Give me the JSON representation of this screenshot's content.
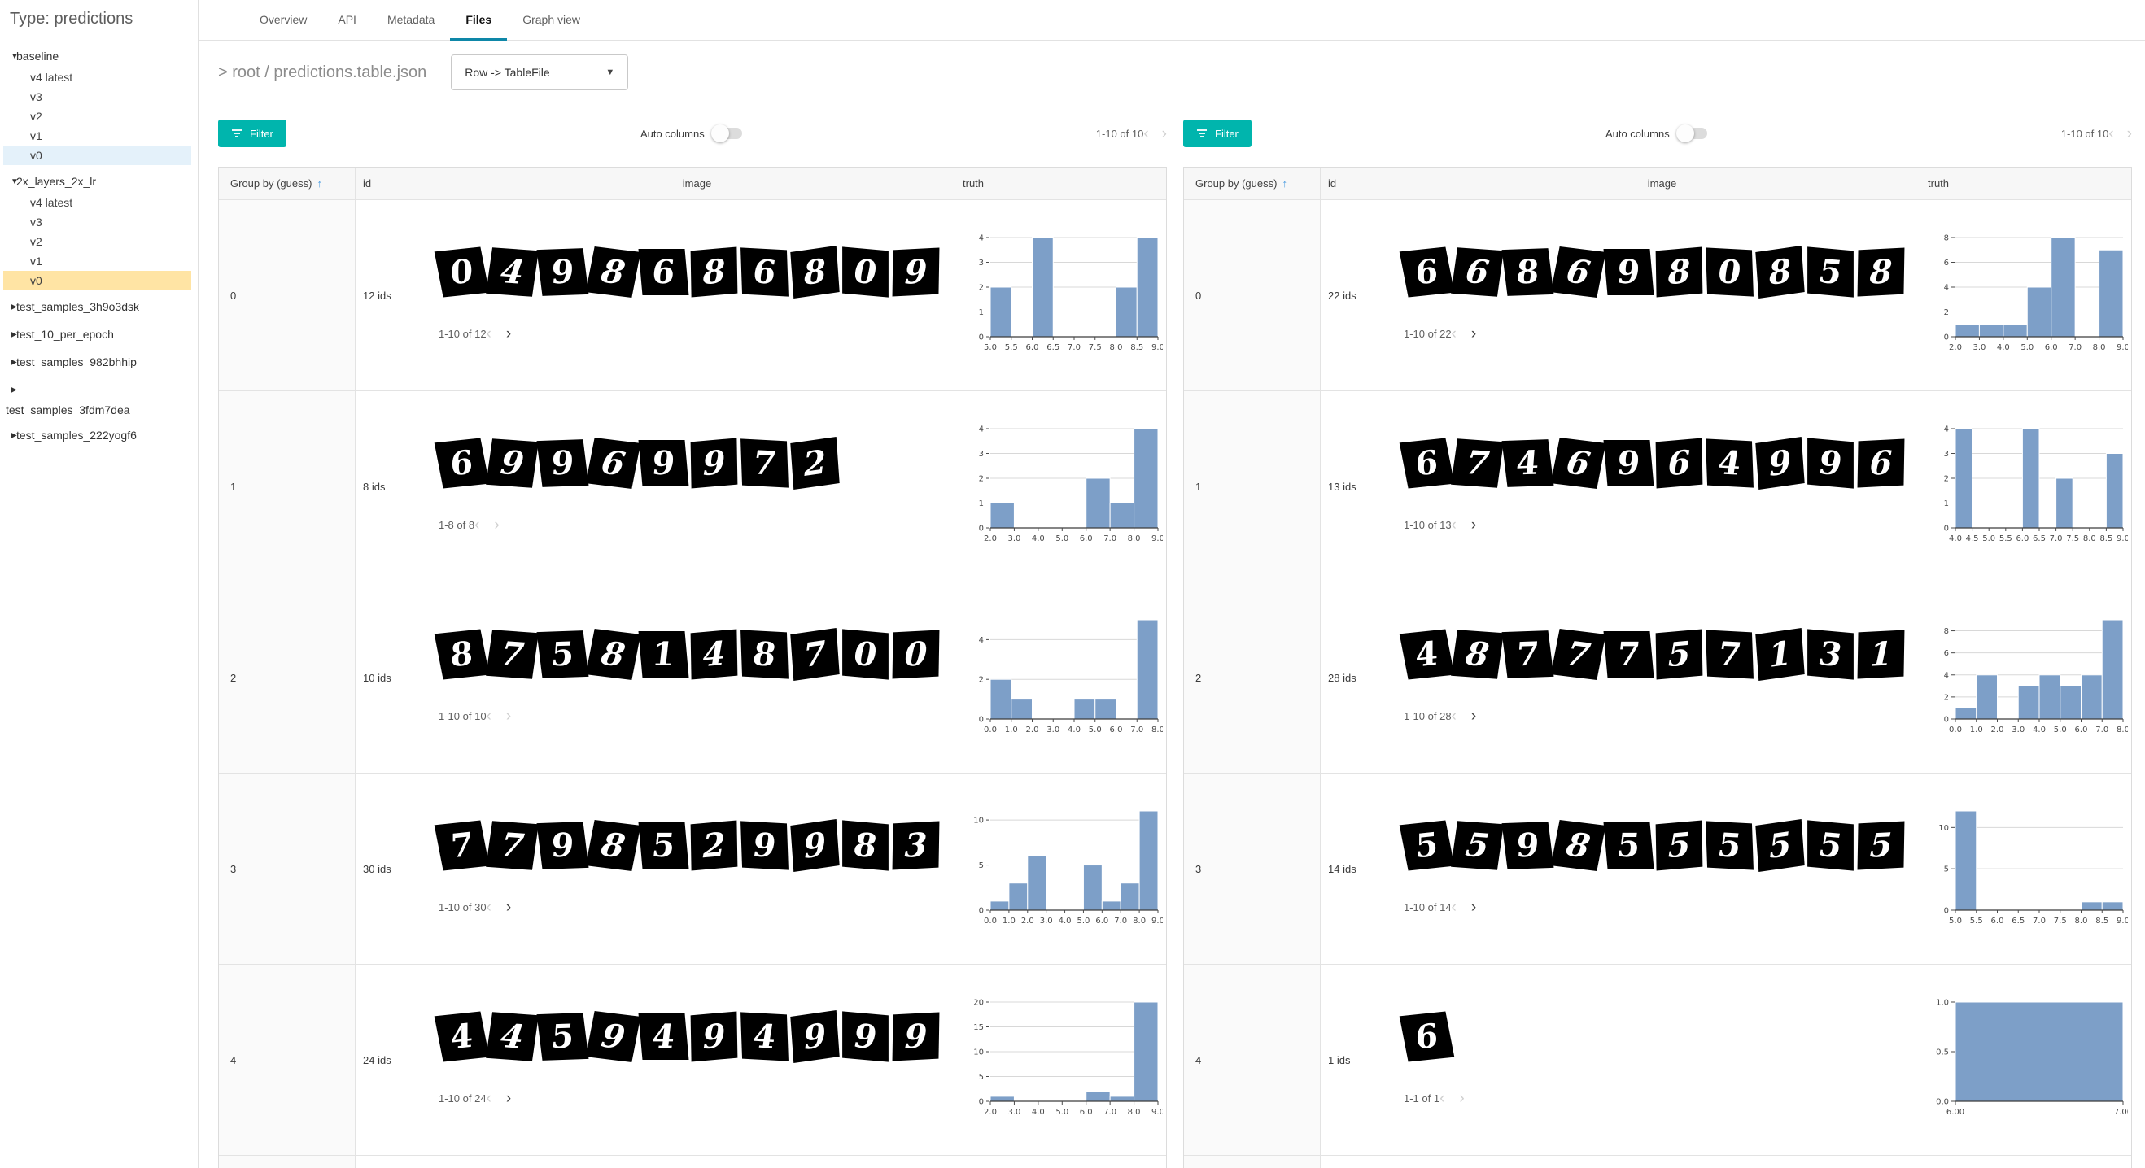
{
  "sidebar": {
    "title": "Type: predictions",
    "tree": [
      {
        "kind": "group",
        "label": "baseline",
        "expanded": true,
        "children": [
          {
            "label": "v4 latest"
          },
          {
            "label": "v3"
          },
          {
            "label": "v2"
          },
          {
            "label": "v1"
          },
          {
            "label": "v0",
            "highlight": "blue"
          }
        ]
      },
      {
        "kind": "group",
        "label": "2x_layers_2x_lr",
        "expanded": true,
        "children": [
          {
            "label": "v4 latest"
          },
          {
            "label": "v3"
          },
          {
            "label": "v2"
          },
          {
            "label": "v1"
          },
          {
            "label": "v0",
            "highlight": "amber"
          }
        ]
      },
      {
        "kind": "group",
        "label": "test_samples_3h9o3dsk",
        "expanded": false
      },
      {
        "kind": "group",
        "label": "test_10_per_epoch",
        "expanded": false
      },
      {
        "kind": "group",
        "label": "test_samples_982bhhip",
        "expanded": false
      },
      {
        "kind": "group",
        "label": "test_samples_3fdm7dea",
        "expanded": false,
        "wrapped": true
      },
      {
        "kind": "group",
        "label": "test_samples_222yogf6",
        "expanded": false
      }
    ]
  },
  "tabs": [
    {
      "label": "Overview",
      "active": false
    },
    {
      "label": "API",
      "active": false
    },
    {
      "label": "Metadata",
      "active": false
    },
    {
      "label": "Files",
      "active": true
    },
    {
      "label": "Graph view",
      "active": false
    }
  ],
  "breadcrumb": "> root / predictions.table.json",
  "view_select": {
    "value": "Row -> TableFile"
  },
  "colors": {
    "accent_teal": "#00b5ad",
    "tab_underline": "#0e87a8",
    "sort_arrow": "#4b9ce0",
    "hist_bar": "#7d9fc8",
    "highlight_blue": "#e4f1fa",
    "highlight_amber": "#ffe4a4"
  },
  "panels": [
    {
      "toolbar": {
        "filter_label": "Filter",
        "auto_columns_label": "Auto columns",
        "auto_columns_on": false,
        "pagination": "1-10 of 10"
      },
      "header": {
        "group": "Group by (guess)",
        "sort": "asc",
        "id": "id",
        "image": "image",
        "truth": "truth"
      },
      "rows": [
        {
          "group": "0",
          "ids": "12 ids",
          "digits": [
            "0",
            "4",
            "9",
            "8",
            "6",
            "8",
            "6",
            "8",
            "0",
            "9"
          ],
          "pagination": "1-10 of 12",
          "prev_enabled": false,
          "next_enabled": true,
          "hist": {
            "bin_start": 5.0,
            "bin_size": 0.5,
            "counts": [
              2,
              0,
              4,
              0,
              0,
              0,
              2,
              4
            ],
            "ytick_vals": [
              0,
              1,
              2,
              3,
              4
            ],
            "ytick_labels": [
              "0",
              "1",
              "2",
              "3",
              "4"
            ],
            "xtick_vals": [
              5.0,
              5.5,
              6.0,
              6.5,
              7.0,
              7.5,
              8.0,
              8.5,
              9.0
            ],
            "xtick_labels": [
              "5.0",
              "5.5",
              "6.0",
              "6.5",
              "7.0",
              "7.5",
              "8.0",
              "8.5",
              "9.0"
            ]
          }
        },
        {
          "group": "1",
          "ids": "8 ids",
          "digits": [
            "6",
            "9",
            "9",
            "6",
            "9",
            "9",
            "7",
            "2"
          ],
          "pagination": "1-8 of 8",
          "prev_enabled": false,
          "next_enabled": false,
          "hist": {
            "bin_start": 2,
            "bin_size": 1,
            "counts": [
              1,
              0,
              0,
              0,
              2,
              1,
              4
            ],
            "ytick_vals": [
              0,
              1,
              2,
              3,
              4
            ],
            "ytick_labels": [
              "0",
              "1",
              "2",
              "3",
              "4"
            ],
            "xtick_vals": [
              2,
              3,
              4,
              5,
              6,
              7,
              8,
              9
            ],
            "xtick_labels": [
              "2.0",
              "3.0",
              "4.0",
              "5.0",
              "6.0",
              "7.0",
              "8.0",
              "9.0"
            ]
          }
        },
        {
          "group": "2",
          "ids": "10 ids",
          "digits": [
            "8",
            "7",
            "5",
            "8",
            "1",
            "4",
            "8",
            "7",
            "0",
            "0"
          ],
          "pagination": "1-10 of 10",
          "prev_enabled": false,
          "next_enabled": false,
          "hist": {
            "bin_start": 0,
            "bin_size": 1,
            "counts": [
              2,
              1,
              0,
              0,
              1,
              1,
              0,
              5
            ],
            "ytick_vals": [
              0,
              2,
              4
            ],
            "ytick_labels": [
              "0",
              "2",
              "4"
            ],
            "xtick_vals": [
              0,
              1,
              2,
              3,
              4,
              5,
              6,
              7,
              8
            ],
            "xtick_labels": [
              "0.0",
              "1.0",
              "2.0",
              "3.0",
              "4.0",
              "5.0",
              "6.0",
              "7.0",
              "8.0"
            ]
          }
        },
        {
          "group": "3",
          "ids": "30 ids",
          "digits": [
            "7",
            "7",
            "9",
            "8",
            "5",
            "2",
            "9",
            "9",
            "8",
            "3"
          ],
          "pagination": "1-10 of 30",
          "prev_enabled": false,
          "next_enabled": true,
          "hist": {
            "bin_start": 0,
            "bin_size": 1,
            "counts": [
              1,
              3,
              6,
              0,
              0,
              5,
              1,
              3,
              11
            ],
            "ytick_vals": [
              0,
              5,
              10
            ],
            "ytick_labels": [
              "0",
              "5",
              "10"
            ],
            "xtick_vals": [
              0,
              1,
              2,
              3,
              4,
              5,
              6,
              7,
              8,
              9
            ],
            "xtick_labels": [
              "0.0",
              "1.0",
              "2.0",
              "3.0",
              "4.0",
              "5.0",
              "6.0",
              "7.0",
              "8.0",
              "9.0"
            ]
          }
        },
        {
          "group": "4",
          "ids": "24 ids",
          "digits": [
            "4",
            "4",
            "5",
            "9",
            "4",
            "9",
            "4",
            "9",
            "9",
            "9"
          ],
          "pagination": "1-10 of 24",
          "prev_enabled": false,
          "next_enabled": true,
          "hist": {
            "bin_start": 2,
            "bin_size": 1,
            "counts": [
              1,
              0,
              0,
              0,
              2,
              1,
              20
            ],
            "ytick_vals": [
              0,
              5,
              10,
              15,
              20
            ],
            "ytick_labels": [
              "0",
              "5",
              "10",
              "15",
              "20"
            ],
            "xtick_vals": [
              2,
              3,
              4,
              5,
              6,
              7,
              8,
              9
            ],
            "xtick_labels": [
              "2.0",
              "3.0",
              "4.0",
              "5.0",
              "6.0",
              "7.0",
              "8.0",
              "9.0"
            ]
          }
        }
      ]
    },
    {
      "toolbar": {
        "filter_label": "Filter",
        "auto_columns_label": "Auto columns",
        "auto_columns_on": false,
        "pagination": "1-10 of 10"
      },
      "header": {
        "group": "Group by (guess)",
        "sort": "asc",
        "id": "id",
        "image": "image",
        "truth": "truth"
      },
      "rows": [
        {
          "group": "0",
          "ids": "22 ids",
          "digits": [
            "6",
            "6",
            "8",
            "6",
            "9",
            "8",
            "0",
            "8",
            "5",
            "8"
          ],
          "pagination": "1-10 of 22",
          "prev_enabled": false,
          "next_enabled": true,
          "hist": {
            "bin_start": 2,
            "bin_size": 1,
            "counts": [
              1,
              1,
              1,
              4,
              8,
              0,
              7
            ],
            "ytick_vals": [
              0,
              2,
              4,
              6,
              8
            ],
            "ytick_labels": [
              "0",
              "2",
              "4",
              "6",
              "8"
            ],
            "xtick_vals": [
              2,
              3,
              4,
              5,
              6,
              7,
              8,
              9
            ],
            "xtick_labels": [
              "2.0",
              "3.0",
              "4.0",
              "5.0",
              "6.0",
              "7.0",
              "8.0",
              "9.0"
            ]
          }
        },
        {
          "group": "1",
          "ids": "13 ids",
          "digits": [
            "6",
            "7",
            "4",
            "6",
            "9",
            "6",
            "4",
            "9",
            "9",
            "6"
          ],
          "pagination": "1-10 of 13",
          "prev_enabled": false,
          "next_enabled": true,
          "hist": {
            "bin_start": 4.0,
            "bin_size": 0.5,
            "counts": [
              4,
              0,
              0,
              0,
              4,
              0,
              2,
              0,
              0,
              3
            ],
            "ytick_vals": [
              0,
              1,
              2,
              3,
              4
            ],
            "ytick_labels": [
              "0",
              "1",
              "2",
              "3",
              "4"
            ],
            "xtick_vals": [
              4.0,
              4.5,
              5.0,
              5.5,
              6.0,
              6.5,
              7.0,
              7.5,
              8.0,
              8.5,
              9.0
            ],
            "xtick_labels": [
              "4.0",
              "4.5",
              "5.0",
              "5.5",
              "6.0",
              "6.5",
              "7.0",
              "7.5",
              "8.0",
              "8.5",
              "9.0"
            ]
          }
        },
        {
          "group": "2",
          "ids": "28 ids",
          "digits": [
            "4",
            "8",
            "7",
            "7",
            "7",
            "5",
            "7",
            "1",
            "3",
            "1"
          ],
          "pagination": "1-10 of 28",
          "prev_enabled": false,
          "next_enabled": true,
          "hist": {
            "bin_start": 0,
            "bin_size": 1,
            "counts": [
              1,
              4,
              0,
              3,
              4,
              3,
              4,
              9
            ],
            "ytick_vals": [
              0,
              2,
              4,
              6,
              8
            ],
            "ytick_labels": [
              "0",
              "2",
              "4",
              "6",
              "8"
            ],
            "xtick_vals": [
              0,
              1,
              2,
              3,
              4,
              5,
              6,
              7,
              8
            ],
            "xtick_labels": [
              "0.0",
              "1.0",
              "2.0",
              "3.0",
              "4.0",
              "5.0",
              "6.0",
              "7.0",
              "8.0"
            ]
          }
        },
        {
          "group": "3",
          "ids": "14 ids",
          "digits": [
            "5",
            "5",
            "9",
            "8",
            "5",
            "5",
            "5",
            "5",
            "5",
            "5"
          ],
          "pagination": "1-10 of 14",
          "prev_enabled": false,
          "next_enabled": true,
          "hist": {
            "bin_start": 5.0,
            "bin_size": 0.5,
            "counts": [
              12,
              0,
              0,
              0,
              0,
              0,
              1,
              1
            ],
            "ytick_vals": [
              0,
              5,
              10
            ],
            "ytick_labels": [
              "0",
              "5",
              "10"
            ],
            "xtick_vals": [
              5.0,
              5.5,
              6.0,
              6.5,
              7.0,
              7.5,
              8.0,
              8.5,
              9.0
            ],
            "xtick_labels": [
              "5.0",
              "5.5",
              "6.0",
              "6.5",
              "7.0",
              "7.5",
              "8.0",
              "8.5",
              "9.0"
            ]
          }
        },
        {
          "group": "4",
          "ids": "1 ids",
          "digits": [
            "6"
          ],
          "pagination": "1-1 of 1",
          "prev_enabled": false,
          "next_enabled": false,
          "hist": {
            "bin_start": 6,
            "bin_size": 1,
            "counts": [
              1
            ],
            "ytick_vals": [
              0,
              0.5,
              1
            ],
            "ytick_labels": [
              "0.0",
              "0.5",
              "1.0"
            ],
            "xtick_vals": [
              6,
              7
            ],
            "xtick_labels": [
              "6.00",
              "7.00"
            ]
          }
        }
      ]
    }
  ]
}
